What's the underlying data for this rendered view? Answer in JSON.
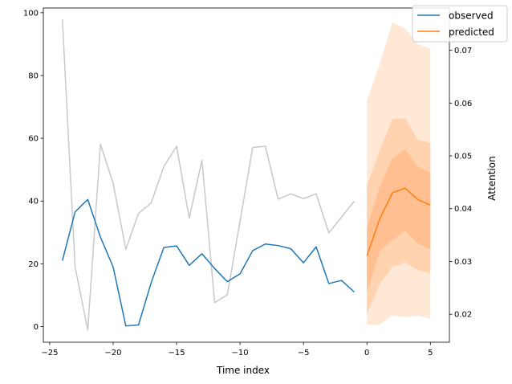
{
  "chart_data": {
    "type": "line",
    "xlabel": "Time index",
    "ylabel_left": "",
    "ylabel_right": "Attention",
    "xlim": [
      -25.5,
      6.5
    ],
    "ylim_left": [
      -5,
      101.5
    ],
    "ylim_right": [
      0.0147,
      0.078
    ],
    "x_ticks": [
      -25,
      -20,
      -15,
      -10,
      -5,
      0,
      5
    ],
    "x_tick_labels": [
      "−25",
      "−20",
      "−15",
      "−10",
      "−5",
      "0",
      "5"
    ],
    "y_left_ticks": [
      0,
      20,
      40,
      60,
      80,
      100
    ],
    "y_left_tick_labels": [
      "0",
      "20",
      "40",
      "60",
      "80",
      "100"
    ],
    "y_right_ticks": [
      0.02,
      0.03,
      0.04,
      0.05,
      0.06,
      0.07
    ],
    "y_right_tick_labels": [
      "0.02",
      "0.03",
      "0.04",
      "0.05",
      "0.06",
      "0.07"
    ],
    "legend": {
      "position": "top-right",
      "entries": [
        {
          "label": "observed",
          "color": "#1f77b4"
        },
        {
          "label": "predicted",
          "color": "#ff7f0e"
        }
      ]
    },
    "series": [
      {
        "name": "observed",
        "axis": "left",
        "color": "#1f77b4",
        "x": [
          -24,
          -23,
          -22,
          -21,
          -20,
          -19,
          -18,
          -17,
          -16,
          -15,
          -14,
          -13,
          -12,
          -11,
          -10,
          -9,
          -8,
          -7,
          -6,
          -5,
          -4,
          -3,
          -2,
          -1
        ],
        "values": [
          21,
          36.5,
          40.5,
          28.5,
          19,
          0.2,
          0.5,
          14,
          25.2,
          25.7,
          19.5,
          23.2,
          18.5,
          14.3,
          16.8,
          24.2,
          26.3,
          25.8,
          24.8,
          20.3,
          25.4,
          13.7,
          14.7,
          11
        ]
      },
      {
        "name": "",
        "axis": "right",
        "color": "#c8c8c8",
        "x": [
          -24,
          -23,
          -22,
          -21,
          -20,
          -19,
          -18,
          -17,
          -16,
          -15,
          -14,
          -13,
          -12,
          -11,
          -10,
          -9,
          -8,
          -7,
          -6,
          -5,
          -4,
          -3,
          -2,
          -1
        ],
        "values": [
          0.0759,
          0.029,
          0.017,
          0.0522,
          0.0448,
          0.0323,
          0.0391,
          0.0411,
          0.048,
          0.0518,
          0.0382,
          0.0492,
          0.0222,
          0.0237,
          0.0376,
          0.0516,
          0.0518,
          0.0418,
          0.0428,
          0.0419,
          0.0428,
          0.0354,
          0.0384,
          0.0414
        ]
      },
      {
        "name": "predicted",
        "axis": "left",
        "color": "#ff7f0e",
        "x": [
          0,
          1,
          2,
          3,
          4,
          5
        ],
        "values": [
          22.5,
          34.2,
          42.6,
          44.1,
          40.5,
          38.7
        ]
      }
    ],
    "bands": [
      {
        "axis": "left",
        "color": "#ffe8d6",
        "x": [
          0,
          1,
          2,
          3,
          4,
          5
        ],
        "lower": [
          0.5,
          0.5,
          3.5,
          3,
          3.5,
          2.5
        ],
        "upper": [
          72,
          83.5,
          97,
          95,
          90,
          88.5
        ]
      },
      {
        "axis": "left",
        "color": "#ffd2b0",
        "x": [
          0,
          1,
          2,
          3,
          4,
          5
        ],
        "lower": [
          4,
          13.5,
          19,
          20.5,
          18,
          17
        ],
        "upper": [
          45,
          56,
          66,
          66.5,
          59.5,
          58.5
        ]
      },
      {
        "axis": "left",
        "color": "#ffbf90",
        "x": [
          0,
          1,
          2,
          3,
          4,
          5
        ],
        "lower": [
          11,
          24,
          27.5,
          30.5,
          26.5,
          24.5
        ],
        "upper": [
          31.5,
          44.5,
          53.5,
          56.5,
          51,
          49
        ]
      }
    ]
  }
}
